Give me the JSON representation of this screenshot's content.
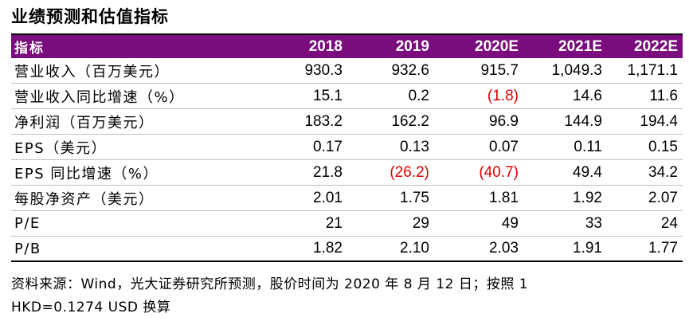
{
  "title": "业绩预测和估值指标",
  "table": {
    "header": [
      "指标",
      "2018",
      "2019",
      "2020E",
      "2021E",
      "2022E"
    ],
    "rows": [
      {
        "label": "营业收入（百万美元）",
        "values": [
          "930.3",
          "932.6",
          "915.7",
          "1,049.3",
          "1,171.1"
        ]
      },
      {
        "label": "营业收入同比增速（%）",
        "values": [
          "15.1",
          "0.2",
          "(1.8)",
          "14.6",
          "11.6"
        ]
      },
      {
        "label": "净利润（百万美元）",
        "values": [
          "183.2",
          "162.2",
          "96.9",
          "144.9",
          "194.4"
        ]
      },
      {
        "label": "EPS（美元）",
        "values": [
          "0.17",
          "0.13",
          "0.07",
          "0.11",
          "0.15"
        ]
      },
      {
        "label": "EPS 同比增速（%）",
        "values": [
          "21.8",
          "(26.2)",
          "(40.7)",
          "49.4",
          "34.2"
        ]
      },
      {
        "label": "每股净资产（美元）",
        "values": [
          "2.01",
          "1.75",
          "1.81",
          "1.92",
          "2.07"
        ]
      },
      {
        "label": "P/E",
        "values": [
          "21",
          "29",
          "49",
          "33",
          "24"
        ]
      },
      {
        "label": "P/B",
        "values": [
          "1.82",
          "2.10",
          "2.03",
          "1.91",
          "1.77"
        ]
      }
    ]
  },
  "source": {
    "line1": "资料来源：Wind，光大证券研究所预测，股价时间为 2020 年 8 月 12 日；按照 1",
    "line2": "HKD=0.1274 USD 换算"
  },
  "colors": {
    "header_bg": "#7b0c7e",
    "negative": "#e00000"
  }
}
